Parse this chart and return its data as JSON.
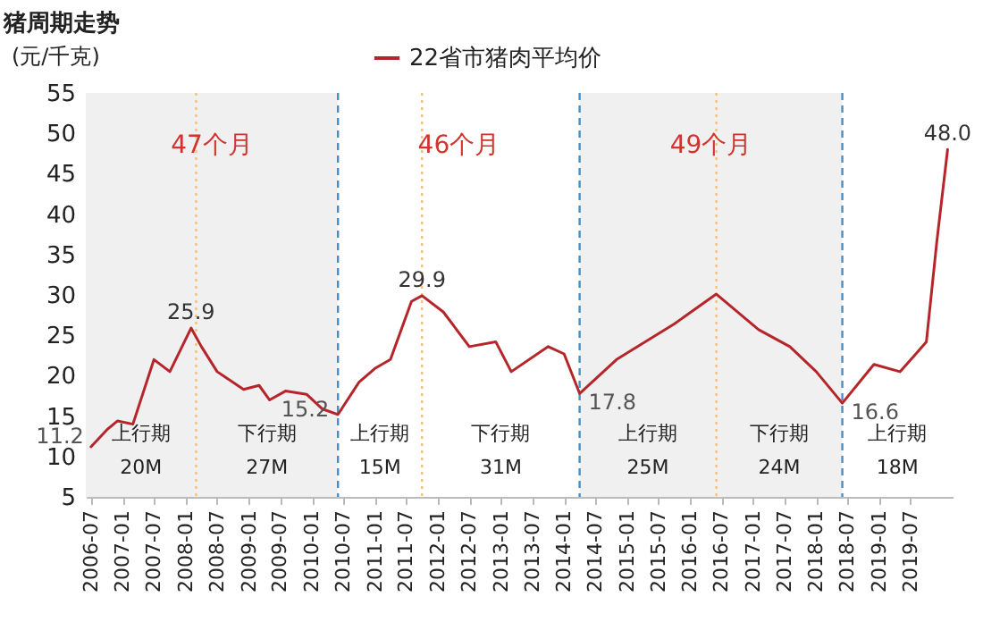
{
  "chart_data": {
    "type": "line",
    "title": "猪周期走势",
    "ylabel": "(元/千克)",
    "legend": "top",
    "grid": false,
    "line_style": "solid",
    "x": [
      "2006-07",
      "2006-10",
      "2006-12",
      "2007-03",
      "2007-07",
      "2007-10",
      "2008-02",
      "2008-04",
      "2008-07",
      "2008-12",
      "2009-03",
      "2009-05",
      "2009-08",
      "2009-12",
      "2010-03",
      "2010-06",
      "2010-10",
      "2011-01",
      "2011-04",
      "2011-08",
      "2011-10",
      "2012-02",
      "2012-07",
      "2012-12",
      "2013-03",
      "2013-10",
      "2014-01",
      "2014-04",
      "2014-11",
      "2015-10",
      "2016-06",
      "2017-02",
      "2017-08",
      "2018-01",
      "2018-06",
      "2018-12",
      "2019-05",
      "2019-08",
      "2019-10",
      "2019-12",
      "2020-02"
    ],
    "series": [
      {
        "name": "22省市猪肉平均价",
        "color": "#b5262b",
        "values": [
          11.2,
          13.3,
          14.4,
          14.0,
          22.0,
          20.5,
          25.9,
          23.6,
          20.5,
          18.3,
          18.8,
          17.0,
          18.1,
          17.7,
          15.9,
          15.2,
          19.2,
          20.9,
          22.0,
          29.2,
          29.9,
          27.9,
          23.6,
          24.2,
          20.5,
          23.6,
          22.7,
          17.8,
          22.0,
          26.4,
          30.1,
          25.7,
          23.6,
          20.5,
          16.6,
          21.4,
          20.5,
          22.7,
          24.2,
          36.7,
          48.0
        ]
      }
    ],
    "xlim": [
      "2006-06",
      "2020-03"
    ],
    "xticks": [
      "2006-07",
      "2007-01",
      "2007-07",
      "2008-01",
      "2008-07",
      "2009-01",
      "2009-07",
      "2010-01",
      "2010-07",
      "2011-01",
      "2011-07",
      "2012-01",
      "2012-07",
      "2013-01",
      "2013-07",
      "2014-01",
      "2014-07",
      "2015-01",
      "2015-07",
      "2016-01",
      "2016-07",
      "2017-01",
      "2017-07",
      "2018-01",
      "2018-07",
      "2019-01",
      "2019-07"
    ],
    "ylim": [
      5,
      55
    ],
    "yticks": [
      5,
      10,
      15,
      20,
      25,
      30,
      35,
      40,
      45,
      50,
      55
    ],
    "bands": [
      {
        "axis": "x",
        "from": "2006-06",
        "to": "2010-06",
        "color": "#f0f0f0"
      },
      {
        "axis": "x",
        "from": "2014-04",
        "to": "2018-06",
        "color": "#f0f0f0"
      }
    ],
    "ref_lines": [
      {
        "axis": "x",
        "value": "2010-06",
        "color": "#4a8fc4",
        "line_style": "dashed"
      },
      {
        "axis": "x",
        "value": "2014-04",
        "color": "#4a8fc4",
        "line_style": "dashed"
      },
      {
        "axis": "x",
        "value": "2018-06",
        "color": "#4a8fc4",
        "line_style": "dashed"
      },
      {
        "axis": "x",
        "value": "2008-03",
        "color": "#f3c27a",
        "line_style": "dotted"
      },
      {
        "axis": "x",
        "value": "2011-10",
        "color": "#f3c27a",
        "line_style": "dotted"
      },
      {
        "axis": "x",
        "value": "2016-06",
        "color": "#f3c27a",
        "line_style": "dotted"
      }
    ],
    "annotations": [
      "47个月",
      "46个月",
      "49个月",
      "上行期",
      "20M",
      "下行期",
      "27M",
      "上行期",
      "15M",
      "下行期",
      "31M",
      "上行期",
      "25M",
      "下行期",
      "24M",
      "上行期",
      "18M",
      {
        "text": "11.2",
        "x": "2006-07",
        "y": 11.2
      },
      {
        "text": "25.9",
        "x": "2008-02",
        "y": 25.9
      },
      {
        "text": "15.2",
        "x": "2010-06",
        "y": 15.2
      },
      {
        "text": "29.9",
        "x": "2011-10",
        "y": 29.9
      },
      {
        "text": "17.8",
        "x": "2014-04",
        "y": 17.8
      },
      {
        "text": "16.6",
        "x": "2018-06",
        "y": 16.6
      },
      {
        "text": "48.0",
        "x": "2020-02",
        "y": 48.0
      }
    ]
  }
}
